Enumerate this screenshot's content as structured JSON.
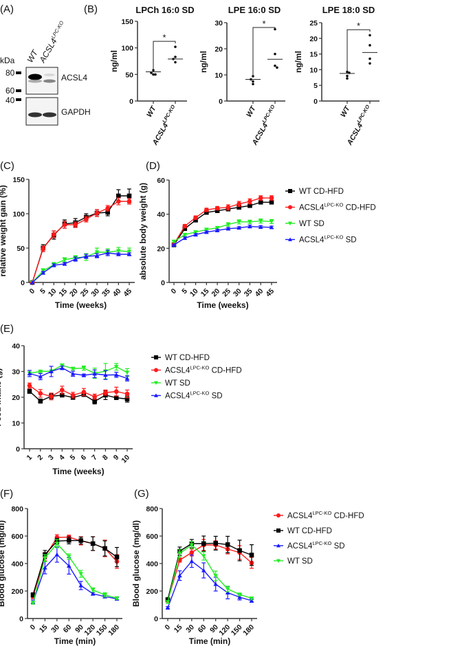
{
  "colors": {
    "wt_cdhfd": "#000000",
    "ko_cdhfd": "#ff1a1a",
    "wt_sd": "#22ee22",
    "ko_sd": "#1a1aff",
    "axis": "#333333"
  },
  "markers": {
    "wt_cdhfd": "square",
    "ko_cdhfd": "circle",
    "wt_sd": "triangle-down",
    "ko_sd": "triangle-up"
  },
  "panel_labels": {
    "a": "(A)",
    "b": "(B)",
    "c": "(C)",
    "d": "(D)",
    "e": "(E)",
    "f": "(F)",
    "g": "(G)"
  },
  "western_blot": {
    "kda_label": "kDa",
    "markers": [
      "80",
      "60",
      "40"
    ],
    "lanes": [
      {
        "base": "WT",
        "sup": ""
      },
      {
        "base": "ACSL4",
        "sup": "LPC-KO"
      }
    ],
    "bands": [
      "ACSL4",
      "GAPDH"
    ]
  },
  "legend_labels": {
    "wt_cdhfd": {
      "base": "WT CD-HFD",
      "sup": "",
      "suffix": ""
    },
    "ko_cdhfd": {
      "base": "ACSL4",
      "sup": "LPC-KO",
      "suffix": " CD-HFD"
    },
    "wt_sd": {
      "base": "WT SD",
      "sup": "",
      "suffix": ""
    },
    "ko_sd": {
      "base": "ACSL4",
      "sup": "LPC-KO",
      "suffix": " SD"
    }
  },
  "chart_data": [
    {
      "id": "b1",
      "type": "scatter",
      "title": "LPCh 16:0 SD",
      "ylabel": "ng/ml",
      "ylim": [
        0,
        150
      ],
      "yticks": [
        0,
        50,
        100,
        150
      ],
      "categories": [
        {
          "base": "WT",
          "sup": ""
        },
        {
          "base": "ACSL4",
          "sup": "LPC-KO"
        }
      ],
      "points": [
        [
          50,
          50,
          53,
          58
        ],
        [
          102,
          83,
          79,
          73
        ]
      ],
      "means": [
        55,
        79
      ],
      "significance": "*"
    },
    {
      "id": "b2",
      "type": "scatter",
      "title": "LPE 16:0 SD",
      "ylabel": "ng/ml",
      "ylim": [
        0,
        30
      ],
      "yticks": [
        0,
        10,
        20,
        30
      ],
      "categories": [
        {
          "base": "WT",
          "sup": ""
        },
        {
          "base": "ACSL4",
          "sup": "LPC-KO"
        }
      ],
      "points": [
        [
          6.5,
          7.5,
          8.3,
          9.5
        ],
        [
          27.5,
          18,
          13.5,
          12.8
        ]
      ],
      "means": [
        8.3,
        16
      ],
      "significance": "*"
    },
    {
      "id": "b3",
      "type": "scatter",
      "title": "LPE 18:0 SD",
      "ylabel": "ng/ml",
      "ylim": [
        0,
        25
      ],
      "yticks": [
        0,
        5,
        10,
        15,
        20,
        25
      ],
      "categories": [
        {
          "base": "WT",
          "sup": ""
        },
        {
          "base": "ACSL4",
          "sup": "LPC-KO"
        }
      ],
      "points": [
        [
          9.3,
          9,
          8,
          7.2
        ],
        [
          21,
          17.8,
          13.5,
          12
        ]
      ],
      "means": [
        8.8,
        15.5
      ],
      "significance": "*"
    },
    {
      "id": "c",
      "type": "line",
      "xlabel": "Time (weeks)",
      "ylabel": "relative weight gain (%)",
      "ylim": [
        0,
        150
      ],
      "yticks": [
        0,
        50,
        100,
        150
      ],
      "x": [
        0,
        5,
        10,
        15,
        20,
        25,
        30,
        35,
        40,
        45
      ],
      "series": [
        {
          "key": "wt_cdhfd",
          "values": [
            0,
            50,
            69,
            85,
            87,
            95,
            101,
            102,
            126,
            126
          ],
          "err": [
            0,
            5,
            6,
            6,
            6,
            5,
            5,
            5,
            9,
            10
          ]
        },
        {
          "key": "ko_cdhfd",
          "values": [
            0,
            49,
            70,
            84,
            84,
            92,
            101,
            108,
            118,
            118
          ],
          "err": [
            0,
            4,
            5,
            5,
            4,
            4,
            5,
            4,
            5,
            4
          ]
        },
        {
          "key": "wt_sd",
          "values": [
            0,
            17,
            26,
            33,
            36,
            37,
            44,
            44,
            46,
            45
          ],
          "err": [
            0,
            3,
            3,
            3,
            3,
            5,
            6,
            5,
            5,
            5
          ]
        },
        {
          "key": "ko_sd",
          "values": [
            0,
            14,
            25,
            27,
            34,
            38,
            39,
            43,
            41,
            41
          ],
          "err": [
            0,
            2,
            2,
            2,
            3,
            3,
            3,
            4,
            2,
            2
          ]
        }
      ]
    },
    {
      "id": "d",
      "type": "line",
      "xlabel": "Time (weeks)",
      "ylabel": "absolute body weight (g)",
      "ylim": [
        0,
        60
      ],
      "yticks": [
        0,
        20,
        40,
        60
      ],
      "x": [
        0,
        5,
        10,
        15,
        20,
        25,
        30,
        35,
        40,
        45
      ],
      "legend": [
        "wt_cdhfd",
        "ko_cdhfd",
        "wt_sd",
        "ko_sd"
      ],
      "series": [
        {
          "key": "wt_cdhfd",
          "values": [
            22,
            31.5,
            36.5,
            41,
            42,
            43,
            44,
            45,
            47,
            47
          ],
          "err": [
            1,
            1,
            1,
            1,
            1,
            1,
            1,
            1,
            1,
            1
          ]
        },
        {
          "key": "ko_cdhfd",
          "values": [
            22.5,
            33,
            38,
            42.5,
            43.5,
            44,
            46,
            47.5,
            49.5,
            49.5
          ],
          "err": [
            1,
            1,
            1,
            1,
            1,
            1.5,
            1.5,
            1.5,
            1.3,
            1.3
          ]
        },
        {
          "key": "wt_sd",
          "values": [
            24,
            28,
            29.5,
            31,
            32,
            34,
            35.5,
            35.5,
            36,
            35.7
          ],
          "err": [
            0.5,
            0.7,
            0.7,
            0.8,
            0.8,
            1,
            1.2,
            1,
            1.2,
            1.2
          ]
        },
        {
          "key": "ko_sd",
          "values": [
            22,
            26,
            28,
            29.5,
            30.5,
            31.5,
            32,
            32.8,
            32.5,
            32.3
          ],
          "err": [
            0.5,
            0.7,
            0.7,
            0.7,
            0.7,
            0.7,
            0.7,
            0.8,
            0.8,
            0.7
          ]
        }
      ]
    },
    {
      "id": "e",
      "type": "line",
      "xlabel": "Time (weeks)",
      "ylabel": "Feed intake (g)",
      "ylim": [
        0,
        40
      ],
      "yticks": [
        0,
        10,
        20,
        30,
        40
      ],
      "x": [
        1,
        2,
        3,
        4,
        5,
        6,
        7,
        8,
        9,
        10
      ],
      "legend": [
        "wt_cdhfd",
        "ko_cdhfd",
        "wt_sd",
        "ko_sd"
      ],
      "series": [
        {
          "key": "wt_cdhfd",
          "values": [
            22.3,
            18.5,
            20.4,
            20.8,
            19.9,
            21,
            18.4,
            20.8,
            19.8,
            19.3
          ],
          "err": [
            0.8,
            0.8,
            1,
            0.6,
            0.6,
            0.6,
            1,
            1.7,
            0.5,
            1.2
          ]
        },
        {
          "key": "ko_cdhfd",
          "values": [
            24.5,
            21.5,
            20.3,
            22.8,
            20.8,
            22,
            20.2,
            21.8,
            22.2,
            21.3
          ],
          "err": [
            1,
            1.5,
            1.3,
            1.5,
            1.1,
            1.4,
            1,
            1,
            1.7,
            1.5
          ]
        },
        {
          "key": "wt_sd",
          "values": [
            29.3,
            30,
            30.1,
            32.4,
            31.1,
            31.3,
            29.3,
            30.1,
            31.8,
            29.6
          ],
          "err": [
            0.5,
            0.4,
            0.5,
            0.4,
            0.5,
            0.8,
            2,
            3,
            1.3,
            1.5
          ]
        },
        {
          "key": "ko_sd",
          "values": [
            29.2,
            28,
            30,
            31.4,
            29.1,
            28.5,
            29.1,
            28.6,
            28.7,
            27.3
          ],
          "err": [
            1.2,
            1.2,
            2,
            0.7,
            1,
            0.5,
            1.5,
            1.7,
            1,
            1
          ]
        }
      ]
    },
    {
      "id": "f",
      "type": "line",
      "xlabel": "Time (min)",
      "ylabel": "Blood glucose (mg/dl)",
      "ylim": [
        0,
        800
      ],
      "yticks": [
        0,
        200,
        400,
        600,
        800
      ],
      "x": [
        0,
        15,
        30,
        60,
        90,
        120,
        150,
        180
      ],
      "series": [
        {
          "key": "ko_cdhfd",
          "values": [
            160,
            450,
            590,
            592,
            565,
            545,
            510,
            415
          ],
          "err": [
            15,
            30,
            20,
            15,
            30,
            50,
            60,
            50
          ]
        },
        {
          "key": "wt_cdhfd",
          "values": [
            172,
            465,
            563,
            568,
            567,
            545,
            510,
            447
          ],
          "err": [
            15,
            30,
            20,
            25,
            25,
            50,
            55,
            70
          ]
        },
        {
          "key": "ko_sd",
          "values": [
            120,
            370,
            465,
            383,
            240,
            180,
            160,
            143
          ],
          "err": [
            15,
            45,
            55,
            60,
            30,
            10,
            10,
            10
          ]
        },
        {
          "key": "wt_sd",
          "values": [
            115,
            440,
            545,
            450,
            325,
            208,
            172,
            148
          ],
          "err": [
            10,
            25,
            30,
            20,
            25,
            15,
            15,
            10
          ]
        }
      ]
    },
    {
      "id": "g",
      "type": "line",
      "xlabel": "Time (min)",
      "ylabel": "Blood glucose (mg/dl)",
      "ylim": [
        0,
        800
      ],
      "yticks": [
        0,
        200,
        400,
        600,
        800
      ],
      "x": [
        0,
        15,
        30,
        60,
        90,
        120,
        150,
        180
      ],
      "legend": [
        "ko_cdhfd",
        "wt_cdhfd",
        "ko_sd",
        "wt_sd"
      ],
      "series": [
        {
          "key": "ko_cdhfd",
          "values": [
            130,
            425,
            480,
            535,
            535,
            505,
            480,
            405
          ],
          "err": [
            10,
            15,
            25,
            40,
            30,
            35,
            50,
            40
          ]
        },
        {
          "key": "wt_cdhfd",
          "values": [
            138,
            490,
            545,
            545,
            548,
            538,
            495,
            462
          ],
          "err": [
            10,
            30,
            30,
            55,
            50,
            60,
            75,
            75
          ]
        },
        {
          "key": "ko_sd",
          "values": [
            78,
            312,
            417,
            350,
            250,
            188,
            155,
            130
          ],
          "err": [
            8,
            35,
            45,
            55,
            50,
            45,
            20,
            12
          ]
        },
        {
          "key": "wt_sd",
          "values": [
            120,
            475,
            535,
            455,
            310,
            215,
            175,
            147
          ],
          "err": [
            10,
            25,
            25,
            30,
            35,
            20,
            10,
            10
          ]
        }
      ]
    }
  ]
}
